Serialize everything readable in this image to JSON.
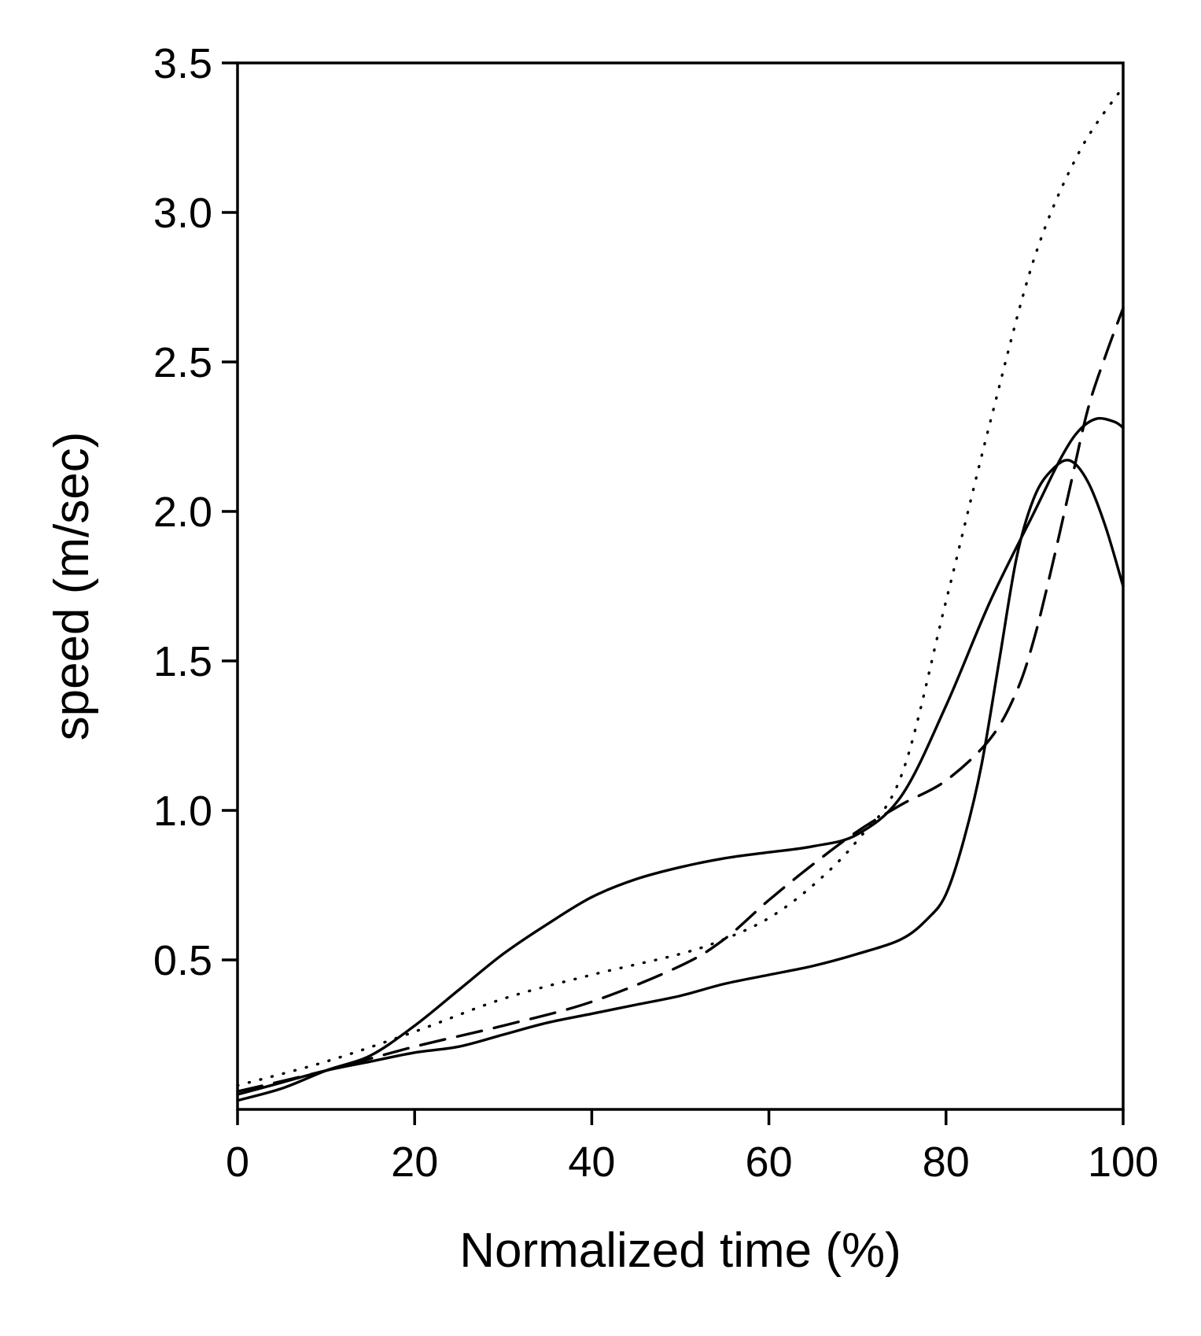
{
  "chart_data": {
    "type": "line",
    "title": "",
    "xlabel": "Normalized time (%)",
    "ylabel": "speed (m/sec)",
    "xlim": [
      0,
      100
    ],
    "ylim": [
      0,
      3.5
    ],
    "xticks": [
      "0",
      "20",
      "40",
      "60",
      "80",
      "100"
    ],
    "xtick_values": [
      0,
      20,
      40,
      60,
      80,
      100
    ],
    "yticks": [
      "0.5",
      "1.0",
      "1.5",
      "2.0",
      "2.5",
      "3.0",
      "3.5"
    ],
    "ytick_values": [
      0.5,
      1.0,
      1.5,
      2.0,
      2.5,
      3.0,
      3.5
    ],
    "grid": false,
    "legend": "none",
    "series": [
      {
        "style": "solid",
        "x": [
          0,
          5,
          10,
          15,
          20,
          25,
          30,
          35,
          40,
          45,
          50,
          55,
          60,
          65,
          70,
          75,
          80,
          85,
          90,
          93,
          95,
          97,
          99,
          100
        ],
        "y": [
          0.03,
          0.07,
          0.13,
          0.18,
          0.28,
          0.4,
          0.52,
          0.62,
          0.71,
          0.77,
          0.81,
          0.84,
          0.86,
          0.88,
          0.92,
          1.05,
          1.35,
          1.7,
          2.0,
          2.18,
          2.27,
          2.31,
          2.3,
          2.28
        ]
      },
      {
        "style": "solid",
        "x": [
          0,
          5,
          10,
          15,
          20,
          25,
          30,
          35,
          40,
          45,
          50,
          55,
          60,
          65,
          70,
          75,
          78,
          80,
          82,
          84,
          86,
          88,
          90,
          92,
          94,
          96,
          98,
          100
        ],
        "y": [
          0.05,
          0.09,
          0.13,
          0.16,
          0.19,
          0.21,
          0.25,
          0.29,
          0.32,
          0.35,
          0.38,
          0.42,
          0.45,
          0.48,
          0.52,
          0.57,
          0.64,
          0.72,
          0.9,
          1.15,
          1.5,
          1.85,
          2.05,
          2.14,
          2.17,
          2.1,
          1.95,
          1.75
        ]
      },
      {
        "style": "dotted",
        "x": [
          0,
          10,
          20,
          30,
          40,
          50,
          55,
          60,
          65,
          70,
          75,
          80,
          85,
          90,
          95,
          100
        ],
        "y": [
          0.08,
          0.16,
          0.26,
          0.37,
          0.45,
          0.52,
          0.57,
          0.64,
          0.75,
          0.9,
          1.12,
          1.7,
          2.3,
          2.85,
          3.2,
          3.42
        ]
      },
      {
        "style": "dashed",
        "x": [
          0,
          10,
          20,
          30,
          40,
          50,
          55,
          60,
          65,
          70,
          75,
          80,
          85,
          88,
          90,
          92,
          94,
          96,
          98,
          100
        ],
        "y": [
          0.06,
          0.13,
          0.21,
          0.28,
          0.36,
          0.48,
          0.57,
          0.7,
          0.82,
          0.93,
          1.02,
          1.1,
          1.24,
          1.4,
          1.58,
          1.82,
          2.08,
          2.34,
          2.52,
          2.68
        ]
      }
    ]
  }
}
